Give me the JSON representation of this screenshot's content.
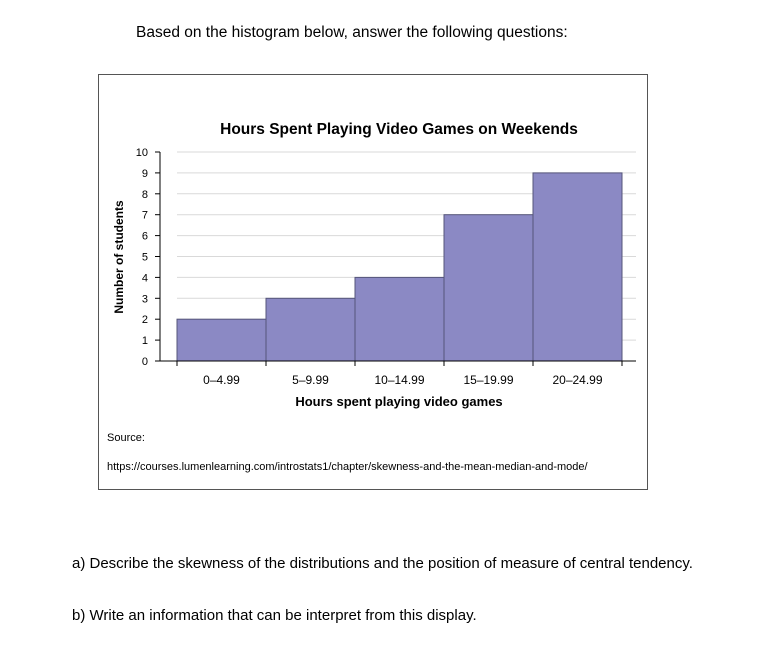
{
  "intro_text": "Based on the histogram below, answer the following questions:",
  "chart_data": {
    "type": "bar",
    "title": "Hours Spent Playing Video Games on Weekends",
    "xlabel": "Hours spent playing video games",
    "ylabel": "Number of students",
    "categories": [
      "0–4.99",
      "5–9.99",
      "10–14.99",
      "15–19.99",
      "20–24.99"
    ],
    "values": [
      2,
      3,
      4,
      7,
      9
    ],
    "ylim": [
      0,
      10
    ],
    "yticks": [
      0,
      1,
      2,
      3,
      4,
      5,
      6,
      7,
      8,
      9,
      10
    ],
    "grid": true,
    "bar_color": "#8b89c4",
    "bar_edge_color": "#55557a"
  },
  "source": {
    "label": "Source:",
    "url": "https://courses.lumenlearning.com/introstats1/chapter/skewness-and-the-mean-median-and-mode/"
  },
  "questions": {
    "a": "a) Describe the skewness of the distributions and the position of measure of central tendency.",
    "b": "b) Write an information that can be interpret from this display."
  }
}
